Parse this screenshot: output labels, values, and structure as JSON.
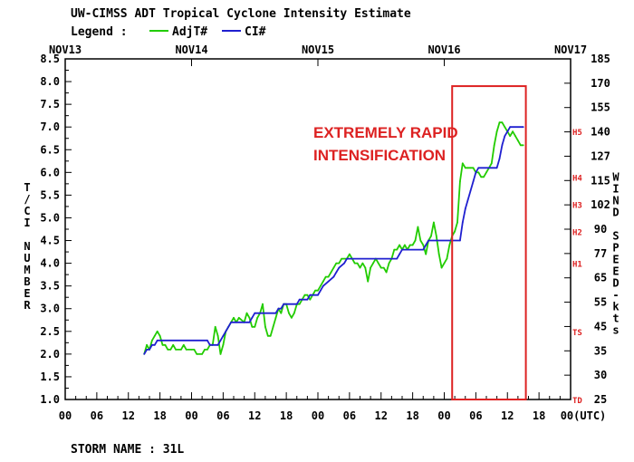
{
  "header": {
    "title": "UW-CIMSS ADT Tropical Cyclone Intensity Estimate",
    "legend_label": "Legend :"
  },
  "footer": {
    "storm_name": "STORM NAME : 31L"
  },
  "annotation": {
    "line1": "EXTREMELY RAPID",
    "line2": "INTENSIFICATION"
  },
  "colors": {
    "adjt_series": "#22cc00",
    "ci_series": "#1f1fd0",
    "highlight_box": "#dd2222",
    "category_labels": "#dd2222",
    "axis": "#000000"
  },
  "chart_data": {
    "type": "line",
    "x_unit": "hours since 00 UTC NOV13",
    "xlim": [
      0,
      96
    ],
    "date_labels": [
      {
        "hour": 0,
        "label": "NOV13"
      },
      {
        "hour": 24,
        "label": "NOV14"
      },
      {
        "hour": 48,
        "label": "NOV15"
      },
      {
        "hour": 72,
        "label": "NOV16"
      },
      {
        "hour": 96,
        "label": "NOV17"
      }
    ],
    "time_ticks": [
      {
        "hour": 0,
        "label": "00"
      },
      {
        "hour": 6,
        "label": "06"
      },
      {
        "hour": 12,
        "label": "12"
      },
      {
        "hour": 18,
        "label": "18"
      },
      {
        "hour": 24,
        "label": "00"
      },
      {
        "hour": 30,
        "label": "06"
      },
      {
        "hour": 36,
        "label": "12"
      },
      {
        "hour": 42,
        "label": "18"
      },
      {
        "hour": 48,
        "label": "00"
      },
      {
        "hour": 54,
        "label": "06"
      },
      {
        "hour": 60,
        "label": "12"
      },
      {
        "hour": 66,
        "label": "18"
      },
      {
        "hour": 72,
        "label": "00"
      },
      {
        "hour": 78,
        "label": "06"
      },
      {
        "hour": 84,
        "label": "12"
      },
      {
        "hour": 90,
        "label": "18"
      },
      {
        "hour": 96,
        "label": "00(UTC)"
      }
    ],
    "ylabel_left": "T/CI NUMBER",
    "ylabel_right": "WIND SPEED-kts",
    "ylim": [
      1.0,
      8.5
    ],
    "left_ticks": [
      "1.0",
      "1.5",
      "2.0",
      "2.5",
      "3.0",
      "3.5",
      "4.0",
      "4.5",
      "5.0",
      "5.5",
      "6.0",
      "6.5",
      "7.0",
      "7.5",
      "8.0",
      "8.5"
    ],
    "right_ticks": [
      "25",
      "30",
      "35",
      "45",
      "55",
      "65",
      "77",
      "90",
      "102",
      "115",
      "127",
      "140",
      "155",
      "170",
      "185"
    ],
    "category_labels": [
      {
        "ci": 1.0,
        "label": "TD"
      },
      {
        "ci": 2.5,
        "label": "TS"
      },
      {
        "ci": 4.0,
        "label": "H1"
      },
      {
        "ci": 4.7,
        "label": "H2"
      },
      {
        "ci": 5.3,
        "label": "H3"
      },
      {
        "ci": 5.9,
        "label": "H4"
      },
      {
        "ci": 6.9,
        "label": "H5"
      }
    ],
    "legend": [
      {
        "name": "AdjT#",
        "color": "#22cc00"
      },
      {
        "name": "CI#",
        "color": "#1f1fd0"
      }
    ],
    "highlight": {
      "x_start": 73.5,
      "x_end": 87.5,
      "y_bottom": 1.0,
      "y_top": 7.9
    },
    "series": [
      {
        "name": "AdjT#",
        "color": "#22cc00",
        "points": [
          [
            15,
            2.0
          ],
          [
            15.5,
            2.2
          ],
          [
            16,
            2.1
          ],
          [
            16.5,
            2.3
          ],
          [
            17,
            2.4
          ],
          [
            17.5,
            2.5
          ],
          [
            18,
            2.4
          ],
          [
            18.5,
            2.2
          ],
          [
            19,
            2.2
          ],
          [
            19.5,
            2.1
          ],
          [
            20,
            2.1
          ],
          [
            20.5,
            2.2
          ],
          [
            21,
            2.1
          ],
          [
            22,
            2.1
          ],
          [
            22.5,
            2.2
          ],
          [
            23,
            2.1
          ],
          [
            24,
            2.1
          ],
          [
            24.5,
            2.1
          ],
          [
            25,
            2.0
          ],
          [
            26,
            2.0
          ],
          [
            26.5,
            2.1
          ],
          [
            27,
            2.1
          ],
          [
            27.5,
            2.2
          ],
          [
            28,
            2.2
          ],
          [
            28.5,
            2.6
          ],
          [
            29,
            2.4
          ],
          [
            29.5,
            2.0
          ],
          [
            30,
            2.2
          ],
          [
            30.5,
            2.5
          ],
          [
            31,
            2.6
          ],
          [
            31.5,
            2.7
          ],
          [
            32,
            2.8
          ],
          [
            32.5,
            2.7
          ],
          [
            33,
            2.8
          ],
          [
            34,
            2.7
          ],
          [
            34.5,
            2.9
          ],
          [
            35,
            2.8
          ],
          [
            35.5,
            2.6
          ],
          [
            36,
            2.6
          ],
          [
            36.5,
            2.8
          ],
          [
            37,
            2.9
          ],
          [
            37.5,
            3.1
          ],
          [
            38,
            2.6
          ],
          [
            38.5,
            2.4
          ],
          [
            39,
            2.4
          ],
          [
            39.5,
            2.6
          ],
          [
            40,
            2.8
          ],
          [
            40.5,
            3.0
          ],
          [
            41,
            2.9
          ],
          [
            41.5,
            3.1
          ],
          [
            42,
            3.1
          ],
          [
            42.5,
            2.9
          ],
          [
            43,
            2.8
          ],
          [
            43.5,
            2.9
          ],
          [
            44,
            3.1
          ],
          [
            44.5,
            3.1
          ],
          [
            45,
            3.2
          ],
          [
            45.5,
            3.3
          ],
          [
            46,
            3.3
          ],
          [
            46.5,
            3.2
          ],
          [
            47,
            3.3
          ],
          [
            47.5,
            3.4
          ],
          [
            48,
            3.4
          ],
          [
            48.5,
            3.5
          ],
          [
            49,
            3.6
          ],
          [
            49.5,
            3.7
          ],
          [
            50,
            3.7
          ],
          [
            50.5,
            3.8
          ],
          [
            51,
            3.9
          ],
          [
            51.5,
            4.0
          ],
          [
            52,
            4.0
          ],
          [
            52.5,
            4.1
          ],
          [
            53,
            4.1
          ],
          [
            53.5,
            4.1
          ],
          [
            54,
            4.2
          ],
          [
            54.5,
            4.1
          ],
          [
            55,
            4.0
          ],
          [
            55.5,
            4.0
          ],
          [
            56,
            3.9
          ],
          [
            56.5,
            4.0
          ],
          [
            57,
            3.9
          ],
          [
            57.5,
            3.6
          ],
          [
            58,
            3.9
          ],
          [
            58.5,
            4.0
          ],
          [
            59,
            4.1
          ],
          [
            59.5,
            4.0
          ],
          [
            60,
            3.9
          ],
          [
            60.5,
            3.9
          ],
          [
            61,
            3.8
          ],
          [
            61.5,
            4.0
          ],
          [
            62,
            4.1
          ],
          [
            62.5,
            4.3
          ],
          [
            63,
            4.3
          ],
          [
            63.5,
            4.4
          ],
          [
            64,
            4.3
          ],
          [
            64.5,
            4.4
          ],
          [
            65,
            4.3
          ],
          [
            65.5,
            4.4
          ],
          [
            66,
            4.4
          ],
          [
            66.5,
            4.5
          ],
          [
            67,
            4.8
          ],
          [
            67.5,
            4.5
          ],
          [
            68,
            4.4
          ],
          [
            68.5,
            4.2
          ],
          [
            69,
            4.5
          ],
          [
            69.5,
            4.6
          ],
          [
            70,
            4.9
          ],
          [
            70.5,
            4.6
          ],
          [
            71,
            4.2
          ],
          [
            71.5,
            3.9
          ],
          [
            72,
            4.0
          ],
          [
            72.5,
            4.1
          ],
          [
            73,
            4.4
          ],
          [
            73.5,
            4.6
          ],
          [
            74,
            4.7
          ],
          [
            74.5,
            4.9
          ],
          [
            75,
            5.8
          ],
          [
            75.5,
            6.2
          ],
          [
            76,
            6.1
          ],
          [
            76.5,
            6.1
          ],
          [
            77,
            6.1
          ],
          [
            77.5,
            6.1
          ],
          [
            78,
            6.0
          ],
          [
            78.5,
            6.0
          ],
          [
            79,
            5.9
          ],
          [
            79.5,
            5.9
          ],
          [
            80,
            6.0
          ],
          [
            80.5,
            6.1
          ],
          [
            81,
            6.2
          ],
          [
            81.5,
            6.6
          ],
          [
            82,
            6.9
          ],
          [
            82.5,
            7.1
          ],
          [
            83,
            7.1
          ],
          [
            83.5,
            7.0
          ],
          [
            84,
            6.9
          ],
          [
            84.5,
            6.8
          ],
          [
            85,
            6.9
          ],
          [
            85.5,
            6.8
          ],
          [
            86,
            6.7
          ],
          [
            86.5,
            6.6
          ],
          [
            87,
            6.6
          ]
        ]
      },
      {
        "name": "CI#",
        "color": "#1f1fd0",
        "points": [
          [
            15,
            2.0
          ],
          [
            15.5,
            2.1
          ],
          [
            16,
            2.1
          ],
          [
            16.5,
            2.2
          ],
          [
            17,
            2.2
          ],
          [
            17.5,
            2.3
          ],
          [
            27,
            2.3
          ],
          [
            27.5,
            2.2
          ],
          [
            28,
            2.2
          ],
          [
            29,
            2.2
          ],
          [
            29.5,
            2.3
          ],
          [
            30,
            2.4
          ],
          [
            30.5,
            2.5
          ],
          [
            31,
            2.6
          ],
          [
            31.5,
            2.7
          ],
          [
            35,
            2.7
          ],
          [
            35.5,
            2.8
          ],
          [
            36,
            2.9
          ],
          [
            40,
            2.9
          ],
          [
            40.5,
            3.0
          ],
          [
            41,
            3.0
          ],
          [
            41.5,
            3.1
          ],
          [
            44,
            3.1
          ],
          [
            44.5,
            3.2
          ],
          [
            46,
            3.2
          ],
          [
            46.5,
            3.3
          ],
          [
            48,
            3.3
          ],
          [
            48.5,
            3.4
          ],
          [
            49,
            3.5
          ],
          [
            50,
            3.6
          ],
          [
            51,
            3.7
          ],
          [
            51.5,
            3.8
          ],
          [
            52,
            3.9
          ],
          [
            53,
            4.0
          ],
          [
            53.5,
            4.1
          ],
          [
            63,
            4.1
          ],
          [
            63.5,
            4.2
          ],
          [
            64,
            4.3
          ],
          [
            68,
            4.3
          ],
          [
            68.5,
            4.4
          ],
          [
            69,
            4.5
          ],
          [
            75,
            4.5
          ],
          [
            75.5,
            4.9
          ],
          [
            76,
            5.2
          ],
          [
            76.5,
            5.4
          ],
          [
            77,
            5.6
          ],
          [
            77.5,
            5.8
          ],
          [
            78,
            6.0
          ],
          [
            78.5,
            6.1
          ],
          [
            82,
            6.1
          ],
          [
            82.5,
            6.3
          ],
          [
            83,
            6.6
          ],
          [
            83.5,
            6.8
          ],
          [
            84,
            6.9
          ],
          [
            84.5,
            7.0
          ],
          [
            87,
            7.0
          ]
        ]
      }
    ]
  }
}
